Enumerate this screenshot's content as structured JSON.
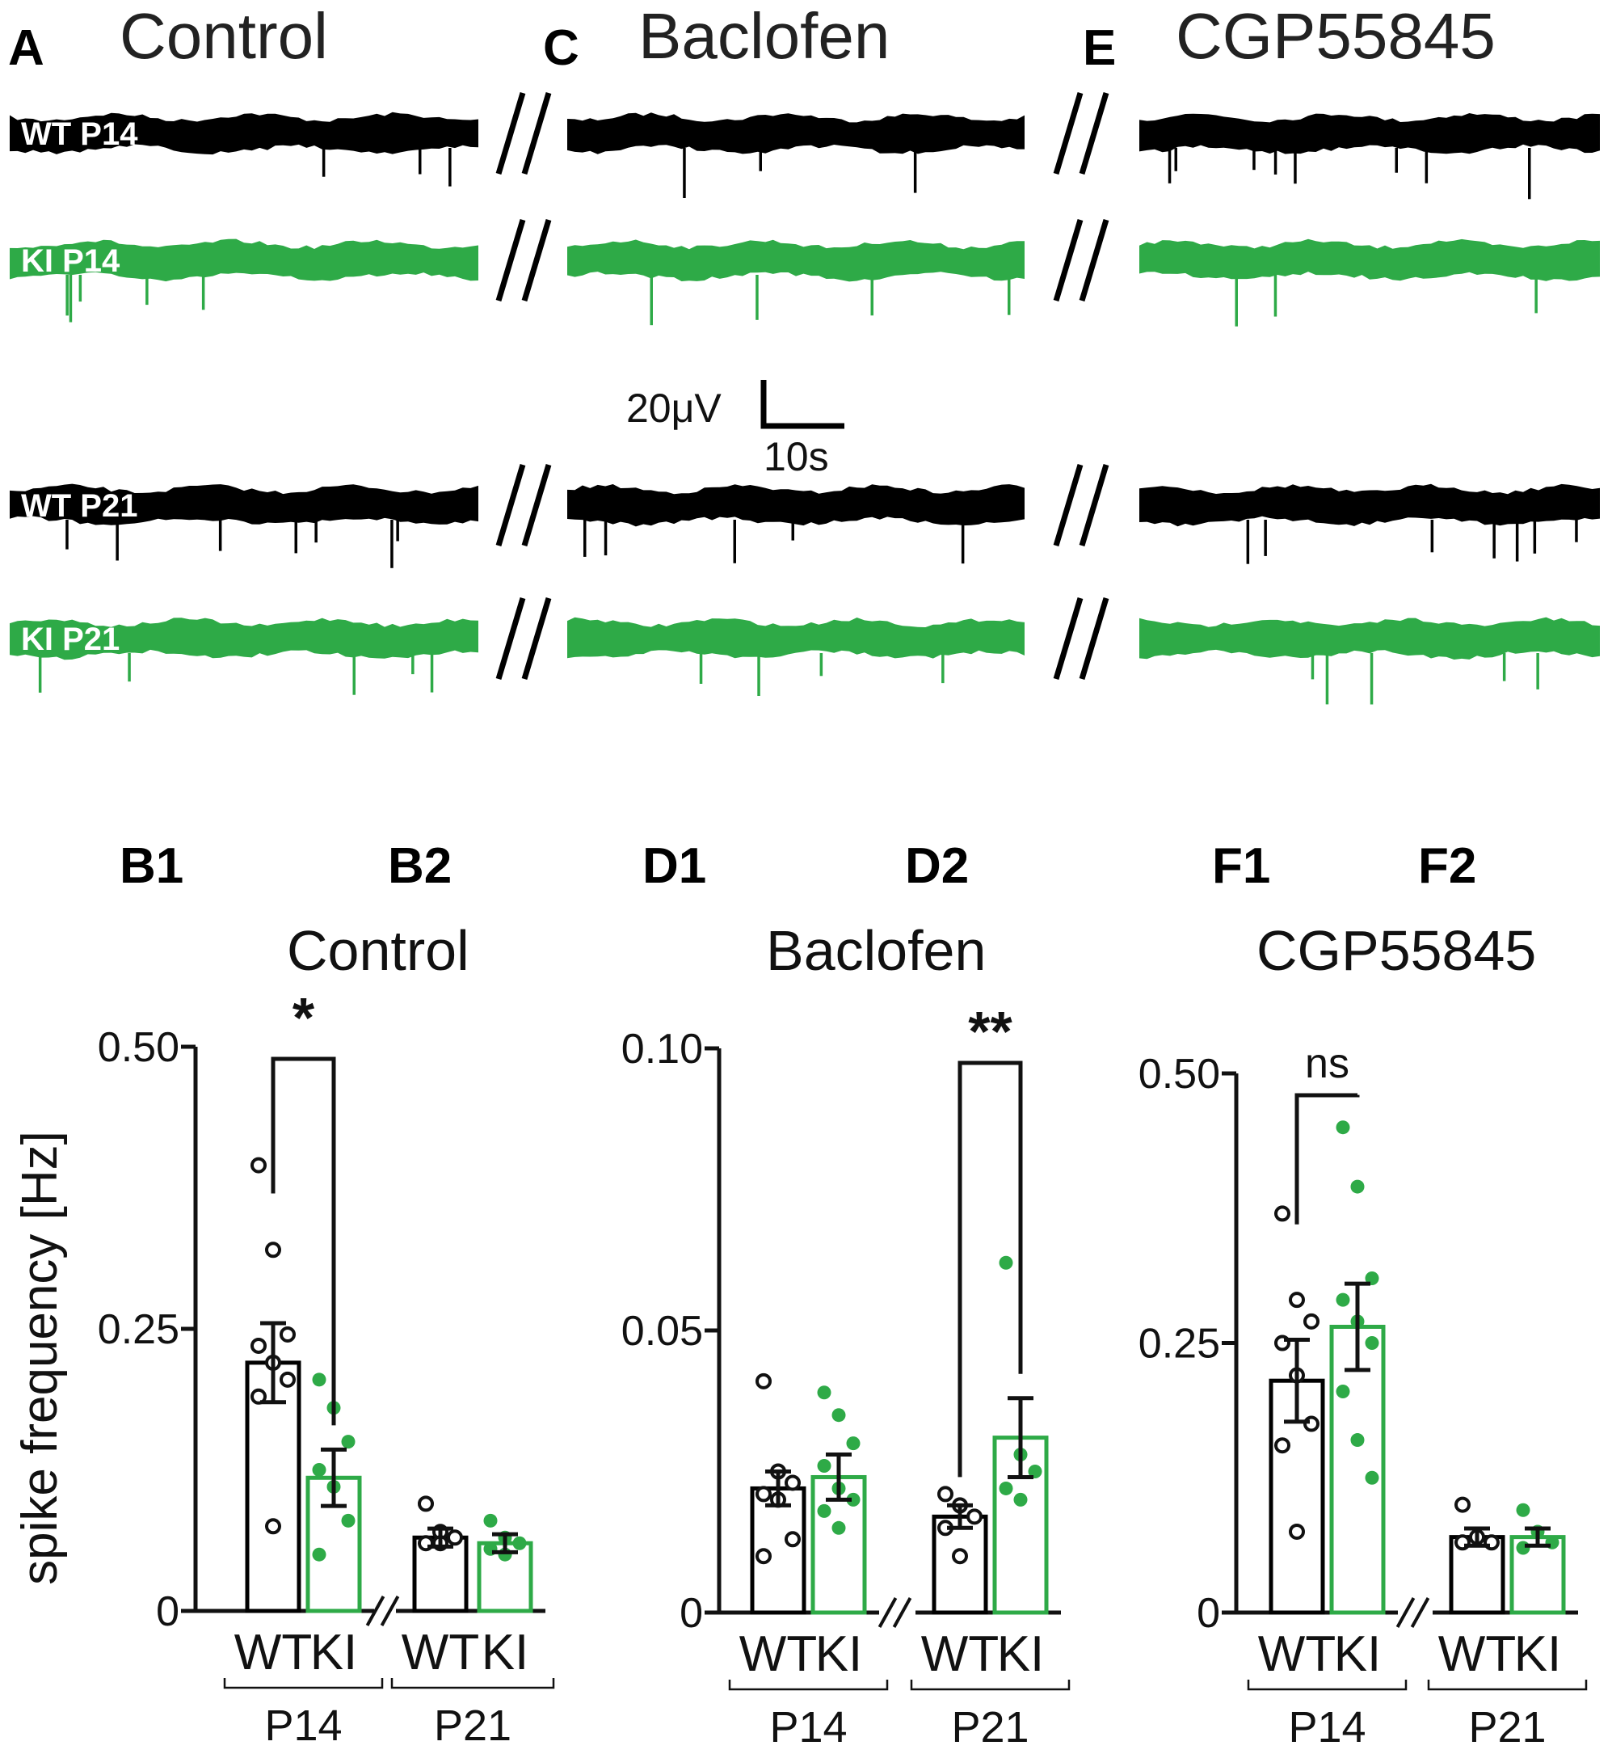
{
  "panels_top": [
    {
      "letter": "A",
      "condition": "Control"
    },
    {
      "letter": "C",
      "condition": "Baclofen"
    },
    {
      "letter": "E",
      "condition": "CGP55845"
    }
  ],
  "trace_rows": [
    {
      "label": "WT P14",
      "genotype": "WT",
      "color": "#000000"
    },
    {
      "label": "KI P14",
      "genotype": "KI",
      "color": "#2eaa47"
    },
    {
      "label": "WT P21",
      "genotype": "WT",
      "color": "#000000"
    },
    {
      "label": "KI P21",
      "genotype": "KI",
      "color": "#2eaa47"
    }
  ],
  "scale_bar": {
    "voltage": "20μV",
    "time": "10s"
  },
  "y_axis_label": "spike frequency [Hz]",
  "colors": {
    "wt": "#000000",
    "ki": "#2eaa47"
  },
  "panel_labels_bottom": [
    "B1",
    "B2",
    "D1",
    "D2",
    "F1",
    "F2"
  ],
  "chart_data": [
    {
      "type": "bar",
      "title": "Control",
      "panels": [
        "B1",
        "B2"
      ],
      "ylabel": "spike frequency [Hz]",
      "ylim": [
        0,
        0.5
      ],
      "yticks": [
        "0",
        "0.25",
        "0.50"
      ],
      "groups": [
        "P14",
        "P21"
      ],
      "categories": [
        "WT",
        "KI"
      ],
      "series": [
        {
          "name": "WT",
          "values": [
            0.22,
            0.065
          ],
          "sem": [
            0.035,
            0.008
          ],
          "points": [
            [
              0.395,
              0.32,
              0.245,
              0.235,
              0.22,
              0.205,
              0.19,
              0.075
            ],
            [
              0.095,
              0.07,
              0.065,
              0.06,
              0.06
            ]
          ]
        },
        {
          "name": "KI",
          "values": [
            0.118,
            0.06
          ],
          "sem": [
            0.025,
            0.008
          ],
          "points": [
            [
              0.205,
              0.18,
              0.15,
              0.125,
              0.11,
              0.08,
              0.05
            ],
            [
              0.08,
              0.065,
              0.06,
              0.055,
              0.05
            ]
          ]
        }
      ],
      "significance": "*"
    },
    {
      "type": "bar",
      "title": "Baclofen",
      "panels": [
        "D1",
        "D2"
      ],
      "ylim": [
        0,
        0.1
      ],
      "yticks": [
        "0",
        "0.05",
        "0.10"
      ],
      "groups": [
        "P14",
        "P21"
      ],
      "categories": [
        "WT",
        "KI"
      ],
      "series": [
        {
          "name": "WT",
          "values": [
            0.022,
            0.017
          ],
          "sem": [
            0.003,
            0.002
          ],
          "points": [
            [
              0.041,
              0.025,
              0.023,
              0.021,
              0.02,
              0.013,
              0.01
            ],
            [
              0.021,
              0.019,
              0.017,
              0.015,
              0.01
            ]
          ]
        },
        {
          "name": "KI",
          "values": [
            0.024,
            0.031
          ],
          "sem": [
            0.004,
            0.007
          ],
          "points": [
            [
              0.039,
              0.035,
              0.03,
              0.026,
              0.022,
              0.02,
              0.018,
              0.015
            ],
            [
              0.062,
              0.028,
              0.025,
              0.022,
              0.02
            ]
          ]
        }
      ],
      "significance": "**"
    },
    {
      "type": "bar",
      "title": "CGP55845",
      "panels": [
        "F1",
        "F2"
      ],
      "ylim": [
        0,
        0.5
      ],
      "yticks": [
        "0",
        "0.25",
        "0.50"
      ],
      "groups": [
        "P14",
        "P21"
      ],
      "categories": [
        "WT",
        "KI"
      ],
      "series": [
        {
          "name": "WT",
          "values": [
            0.215,
            0.07
          ],
          "sem": [
            0.038,
            0.008
          ],
          "points": [
            [
              0.37,
              0.29,
              0.27,
              0.25,
              0.22,
              0.175,
              0.155,
              0.075
            ],
            [
              0.1,
              0.07,
              0.065,
              0.065
            ]
          ]
        },
        {
          "name": "KI",
          "values": [
            0.265,
            0.07
          ],
          "sem": [
            0.04,
            0.008
          ],
          "points": [
            [
              0.45,
              0.395,
              0.31,
              0.29,
              0.27,
              0.25,
              0.205,
              0.16,
              0.125
            ],
            [
              0.095,
              0.075,
              0.065,
              0.06
            ]
          ]
        }
      ],
      "significance": "ns"
    }
  ]
}
